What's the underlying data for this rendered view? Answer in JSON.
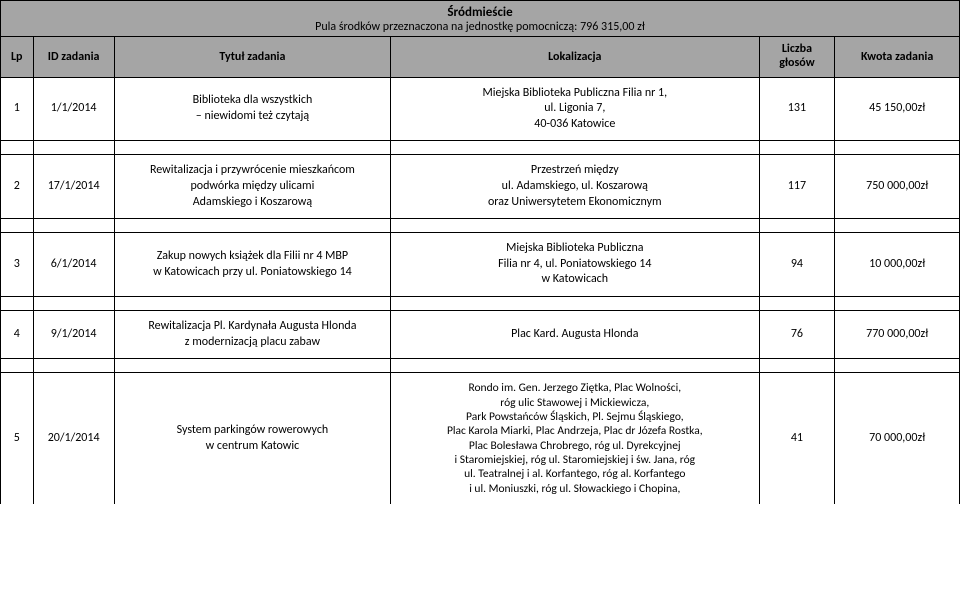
{
  "header": {
    "district": "Śródmieście",
    "budget_label": "Pula środków przeznaczona na jednostkę pomocniczą: 796 315,00 zł"
  },
  "columns": {
    "lp": "Lp",
    "id": "ID zadania",
    "title": "Tytuł zadania",
    "location": "Lokalizacja",
    "votes_line1": "Liczba",
    "votes_line2": "głosów",
    "amount": "Kwota zadania"
  },
  "rows": [
    {
      "lp": "1",
      "id": "1/1/2014",
      "title": "Biblioteka dla wszystkich\n– niewidomi też czytają",
      "location": "Miejska Biblioteka Publiczna Filia nr 1,\nul. Ligonia 7,\n40-036 Katowice",
      "votes": "131",
      "amount": "45 150,00zł"
    },
    {
      "lp": "2",
      "id": "17/1/2014",
      "title": "Rewitalizacja i przywrócenie mieszkańcom\npodwórka między ulicami\nAdamskiego i Koszarową",
      "location": "Przestrzeń między\nul. Adamskiego, ul. Koszarową\noraz Uniwersytetem Ekonomicznym",
      "votes": "117",
      "amount": "750 000,00zł"
    },
    {
      "lp": "3",
      "id": "6/1/2014",
      "title": "Zakup nowych książek dla Filii nr 4 MBP\nw Katowicach przy ul. Poniatowskiego 14",
      "location": "Miejska Biblioteka Publiczna\nFilia nr 4, ul. Poniatowskiego 14\nw Katowicach",
      "votes": "94",
      "amount": "10 000,00zł"
    },
    {
      "lp": "4",
      "id": "9/1/2014",
      "title": "Rewitalizacja Pl. Kardynała Augusta Hlonda\nz modernizacją placu zabaw",
      "location": "Plac Kard. Augusta Hlonda",
      "votes": "76",
      "amount": "770 000,00zł"
    },
    {
      "lp": "5",
      "id": "20/1/2014",
      "title": "System parkingów rowerowych\nw centrum Katowic",
      "location": "Rondo im. Gen. Jerzego Ziętka, Plac Wolności,\nróg ulic Stawowej i Mickiewicza,\nPark Powstańców Śląskich, Pl. Sejmu Śląskiego,\nPlac Karola Miarki, Plac Andrzeja, Plac dr Józefa Rostka,\nPlac Bolesława Chrobrego, róg ul. Dyrekcyjnej\ni Staromiejskiej, róg ul. Staromiejskiej i św. Jana, róg\nul. Teatralnej i al. Korfantego, róg al. Korfantego\ni ul. Moniuszki, róg ul. Słowackiego i Chopina,",
      "votes": "41",
      "amount": "70 000,00zł"
    }
  ]
}
